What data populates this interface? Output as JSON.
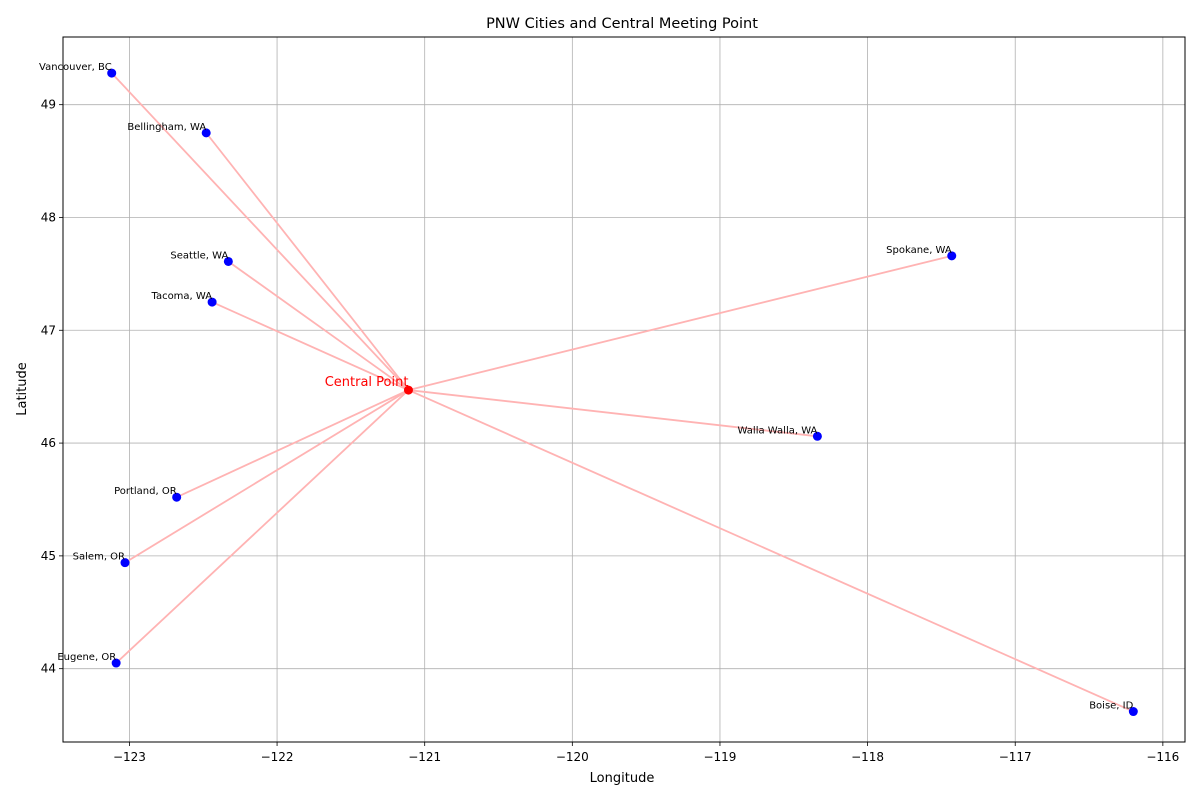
{
  "chart_data": {
    "type": "scatter",
    "title": "PNW Cities and Central Meeting Point",
    "xlabel": "Longitude",
    "ylabel": "Latitude",
    "xlim": [
      -123.45,
      -115.85
    ],
    "ylim": [
      43.35,
      49.6
    ],
    "xticks": [
      -123,
      -122,
      -121,
      -120,
      -119,
      -118,
      -117,
      -116
    ],
    "xtick_labels": [
      "−123",
      "−122",
      "−121",
      "−120",
      "−119",
      "−118",
      "−117",
      "−116"
    ],
    "yticks": [
      44,
      45,
      46,
      47,
      48,
      49
    ],
    "ytick_labels": [
      "44",
      "45",
      "46",
      "47",
      "48",
      "49"
    ],
    "grid": true,
    "cities": [
      {
        "name": "Vancouver, BC",
        "lon": -123.12,
        "lat": 49.28
      },
      {
        "name": "Bellingham, WA",
        "lon": -122.48,
        "lat": 48.75
      },
      {
        "name": "Seattle, WA",
        "lon": -122.33,
        "lat": 47.61
      },
      {
        "name": "Tacoma, WA",
        "lon": -122.44,
        "lat": 47.25
      },
      {
        "name": "Spokane, WA",
        "lon": -117.43,
        "lat": 47.66
      },
      {
        "name": "Walla Walla, WA",
        "lon": -118.34,
        "lat": 46.06
      },
      {
        "name": "Portland, OR",
        "lon": -122.68,
        "lat": 45.52
      },
      {
        "name": "Salem, OR",
        "lon": -123.03,
        "lat": 44.94
      },
      {
        "name": "Eugene, OR",
        "lon": -123.09,
        "lat": 44.05
      },
      {
        "name": "Boise, ID",
        "lon": -116.2,
        "lat": 43.62
      }
    ],
    "center": {
      "name": "Central Point",
      "lon": -121.11,
      "lat": 46.47
    },
    "colors": {
      "city_marker": "#0000ff",
      "center_marker": "#ff0000",
      "center_label": "#ff0000",
      "connector": "#ffb3b3",
      "grid": "#b0b0b0"
    }
  }
}
